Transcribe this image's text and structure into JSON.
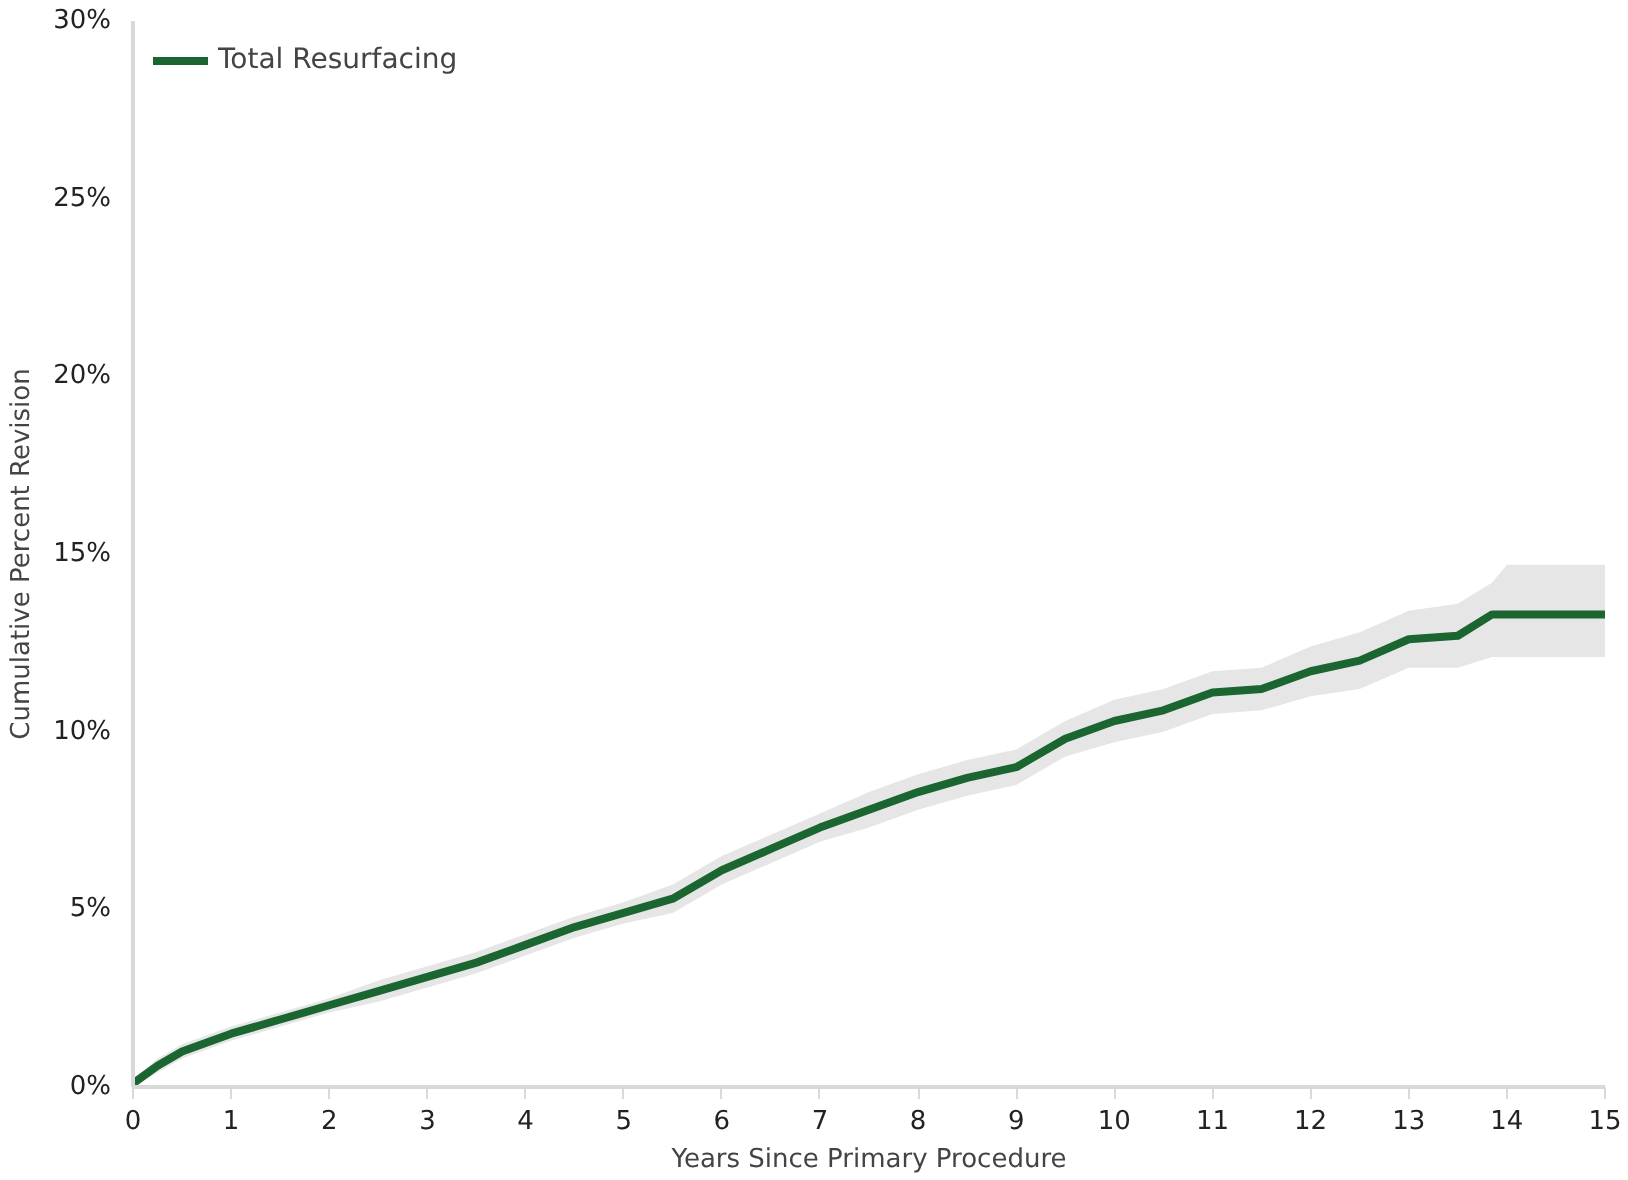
{
  "chart_data": {
    "type": "line",
    "xlabel": "Years Since Primary Procedure",
    "ylabel": "Cumulative Percent Revision",
    "xlim": [
      0,
      15
    ],
    "xticks": [
      0,
      1,
      2,
      3,
      4,
      5,
      6,
      7,
      8,
      9,
      10,
      11,
      12,
      13,
      14,
      15
    ],
    "ylim": [
      0,
      30
    ],
    "yticks": [
      {
        "value": 0,
        "label": "0%"
      },
      {
        "value": 5,
        "label": "5%"
      },
      {
        "value": 10,
        "label": "10%"
      },
      {
        "value": 15,
        "label": "15%"
      },
      {
        "value": 20,
        "label": "20%"
      },
      {
        "value": 25,
        "label": "25%"
      },
      {
        "value": 30,
        "label": "30%"
      }
    ],
    "grid": false,
    "legend": "top left",
    "marker": "none",
    "line_style": "solid",
    "series": [
      {
        "name": "Total Resurfacing",
        "color": "#1a6530",
        "x": [
          0,
          0.25,
          0.5,
          1,
          1.5,
          2,
          2.5,
          3,
          3.5,
          4,
          4.5,
          5,
          5.5,
          6,
          6.5,
          7,
          7.5,
          8,
          8.5,
          9,
          9.5,
          10,
          10.5,
          11,
          11.5,
          12,
          12.5,
          13,
          13.5,
          13.85,
          14,
          15
        ],
        "values": [
          0.1,
          0.6,
          1.0,
          1.5,
          1.9,
          2.3,
          2.7,
          3.1,
          3.5,
          4.0,
          4.5,
          4.9,
          5.3,
          6.1,
          6.7,
          7.3,
          7.8,
          8.3,
          8.7,
          9.0,
          9.8,
          10.3,
          10.6,
          11.1,
          11.2,
          11.7,
          12.0,
          12.6,
          12.7,
          13.3,
          13.3,
          13.3
        ],
        "lower": [
          0.0,
          0.4,
          0.8,
          1.3,
          1.7,
          2.1,
          2.4,
          2.8,
          3.2,
          3.7,
          4.2,
          4.6,
          4.9,
          5.7,
          6.3,
          6.9,
          7.3,
          7.8,
          8.2,
          8.5,
          9.3,
          9.7,
          10.0,
          10.5,
          10.6,
          11.0,
          11.2,
          11.8,
          11.8,
          12.1,
          12.1,
          12.1
        ],
        "upper": [
          0.2,
          0.8,
          1.2,
          1.7,
          2.1,
          2.5,
          3.0,
          3.4,
          3.8,
          4.3,
          4.8,
          5.2,
          5.7,
          6.5,
          7.1,
          7.7,
          8.3,
          8.8,
          9.2,
          9.5,
          10.3,
          10.9,
          11.2,
          11.7,
          11.8,
          12.4,
          12.8,
          13.4,
          13.6,
          14.2,
          14.7,
          14.7
        ]
      }
    ]
  }
}
